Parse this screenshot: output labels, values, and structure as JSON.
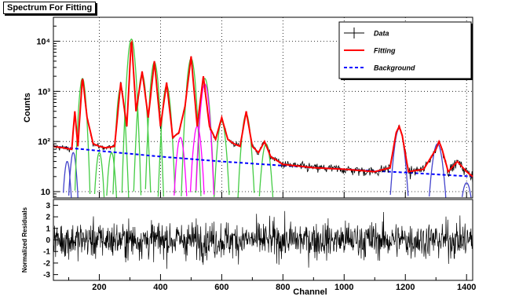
{
  "window": {
    "title": "Spectrum For Fitting"
  },
  "chart_data": [
    {
      "type": "line",
      "scale_y": "log",
      "xlim": [
        50,
        1420
      ],
      "ylim": [
        7.5,
        30000
      ],
      "ylabel": "Counts",
      "xlabel": "",
      "y_ticks": [
        {
          "value": 10,
          "label": "10"
        },
        {
          "value": 100,
          "label": "10²"
        },
        {
          "value": 1000,
          "label": "10³"
        },
        {
          "value": 10000,
          "label": "10⁴"
        }
      ],
      "grid": true,
      "legend_position": "top-right",
      "legend": [
        {
          "name": "Data",
          "style": "cross",
          "color": "#000000"
        },
        {
          "name": "Fitting",
          "style": "solid",
          "color": "#ff0000"
        },
        {
          "name": "Background",
          "style": "dashed",
          "color": "#0000ff"
        }
      ],
      "series": [
        {
          "name": "Fitting",
          "color": "#ff0000",
          "x": [
            50,
            80,
            110,
            120,
            130,
            145,
            160,
            180,
            200,
            220,
            250,
            270,
            290,
            305,
            320,
            340,
            360,
            380,
            400,
            420,
            440,
            460,
            480,
            500,
            520,
            540,
            560,
            580,
            600,
            620,
            640,
            660,
            680,
            700,
            720,
            740,
            760,
            800,
            900,
            1000,
            1100,
            1150,
            1170,
            1180,
            1190,
            1210,
            1260,
            1300,
            1310,
            1320,
            1340,
            1370,
            1400,
            1420
          ],
          "values": [
            80,
            75,
            70,
            400,
            80,
            2000,
            300,
            90,
            80,
            75,
            80,
            1500,
            200,
            12000,
            400,
            2500,
            300,
            4000,
            200,
            1500,
            120,
            150,
            500,
            5000,
            200,
            2000,
            200,
            110,
            300,
            110,
            90,
            80,
            400,
            80,
            60,
            100,
            50,
            35,
            30,
            28,
            25,
            30,
            150,
            200,
            130,
            25,
            28,
            70,
            100,
            70,
            25,
            40,
            25,
            20
          ]
        },
        {
          "name": "Background",
          "color": "#0000ff",
          "x": [
            50,
            200,
            400,
            600,
            800,
            1000,
            1200,
            1420
          ],
          "values": [
            80,
            65,
            50,
            40,
            33,
            28,
            24,
            20
          ]
        }
      ],
      "component_peaks": [
        {
          "color": "#4444cc",
          "centers": [
            95,
            115,
            1180,
            1305,
            1400
          ],
          "amplitudes": [
            40,
            60,
            180,
            90,
            15
          ]
        },
        {
          "color": "#44cc44",
          "centers": [
            145,
            200,
            240,
            270,
            305,
            340,
            380,
            420,
            500,
            545,
            600,
            680,
            745
          ],
          "amplitudes": [
            1800,
            60,
            60,
            1200,
            11000,
            2200,
            3800,
            1300,
            4500,
            1800,
            250,
            350,
            90
          ]
        },
        {
          "color": "#ff00ff",
          "centers": [
            465,
            520,
            545
          ],
          "amplitudes": [
            120,
            200,
            1400
          ]
        }
      ]
    },
    {
      "type": "line",
      "xlim": [
        50,
        1420
      ],
      "ylim": [
        -3.5,
        3.5
      ],
      "xlabel": "Channel",
      "ylabel": "Normalized Residuals",
      "x_ticks": [
        200,
        400,
        600,
        800,
        1000,
        1200,
        1400
      ],
      "y_ticks": [
        -3,
        -2,
        -1,
        0,
        1,
        2,
        3
      ],
      "grid": false
    }
  ]
}
